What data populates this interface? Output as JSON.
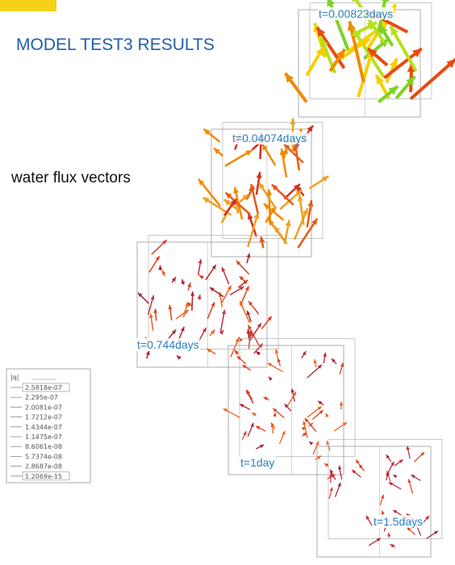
{
  "title": "MODEL TEST3 RESULTS",
  "subtitle": "water flux vectors",
  "panels": [
    {
      "label": "t=0.00823days"
    },
    {
      "label": "t=0.04074days"
    },
    {
      "label": "t=0.744days"
    },
    {
      "label": "t=1day"
    },
    {
      "label": "t=1.5days"
    }
  ],
  "legend": {
    "title": "|q|",
    "labels": [
      "2.5818e-07",
      "2.295e-07",
      "2.0081e-07",
      "1.7212e-07",
      "1.4344e-07",
      "1.1475e-07",
      "8.6061e-08",
      "5.7374e-08",
      "2.8687e-08",
      "1.2069e-15"
    ]
  }
}
